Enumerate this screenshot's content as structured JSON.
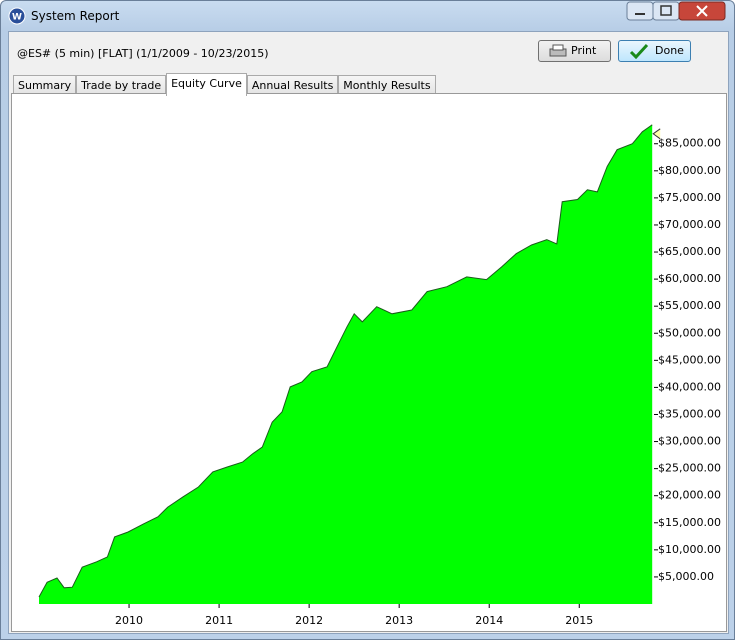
{
  "window": {
    "title": "System Report"
  },
  "header": {
    "text": "@ES# (5 min) [FLAT]  (1/1/2009 - 10/23/2015)"
  },
  "buttons": {
    "print": "Print",
    "done": "Done"
  },
  "tabs": [
    "Summary",
    "Trade by trade",
    "Equity Curve",
    "Annual Results",
    "Monthly Results"
  ],
  "chart_data": {
    "type": "area",
    "color": "#00ff00",
    "line_color": "#1a5c1a",
    "x": [
      2009.0,
      2009.09,
      2009.2,
      2009.28,
      2009.37,
      2009.48,
      2009.64,
      2009.76,
      2009.84,
      2009.99,
      2010.16,
      2010.32,
      2010.43,
      2010.6,
      2010.77,
      2010.93,
      2011.09,
      2011.26,
      2011.37,
      2011.48,
      2011.59,
      2011.7,
      2011.79,
      2011.92,
      2012.03,
      2012.2,
      2012.31,
      2012.42,
      2012.5,
      2012.59,
      2012.75,
      2012.92,
      2013.14,
      2013.31,
      2013.53,
      2013.75,
      2013.97,
      2014.14,
      2014.3,
      2014.47,
      2014.64,
      2014.75,
      2014.81,
      2014.98,
      2015.09,
      2015.2,
      2015.31,
      2015.42,
      2015.59,
      2015.7,
      2015.81
    ],
    "values": [
      1300,
      4000,
      4800,
      3000,
      3100,
      6800,
      7800,
      8700,
      12400,
      13300,
      14800,
      16100,
      17900,
      19800,
      21600,
      24400,
      25300,
      26200,
      27700,
      29000,
      33600,
      35500,
      40100,
      41000,
      42900,
      43800,
      47500,
      51200,
      53600,
      52100,
      54900,
      53600,
      54300,
      57700,
      58600,
      60400,
      59900,
      62300,
      64700,
      66300,
      67300,
      66500,
      74300,
      74700,
      76500,
      76100,
      80800,
      83900,
      85000,
      87200,
      88500
    ],
    "xlim": [
      2009,
      2015.83
    ],
    "xticks": [
      2010,
      2011,
      2012,
      2013,
      2014,
      2015
    ],
    "ylim": [
      0,
      94000
    ],
    "yticks": [
      {
        "value": 5000,
        "label": "$5,000.00"
      },
      {
        "value": 10000,
        "label": "$10,000.00"
      },
      {
        "value": 15000,
        "label": "$15,000.00"
      },
      {
        "value": 20000,
        "label": "$20,000.00"
      },
      {
        "value": 25000,
        "label": "$25,000.00"
      },
      {
        "value": 30000,
        "label": "$30,000.00"
      },
      {
        "value": 35000,
        "label": "$35,000.00"
      },
      {
        "value": 40000,
        "label": "$40,000.00"
      },
      {
        "value": 45000,
        "label": "$45,000.00"
      },
      {
        "value": 50000,
        "label": "$50,000.00"
      },
      {
        "value": 55000,
        "label": "$55,000.00"
      },
      {
        "value": 60000,
        "label": "$60,000.00"
      },
      {
        "value": 65000,
        "label": "$65,000.00"
      },
      {
        "value": 70000,
        "label": "$70,000.00"
      },
      {
        "value": 75000,
        "label": "$75,000.00"
      },
      {
        "value": 80000,
        "label": "$80,000.00"
      },
      {
        "value": 85000,
        "label": "$85,000.00"
      }
    ]
  }
}
